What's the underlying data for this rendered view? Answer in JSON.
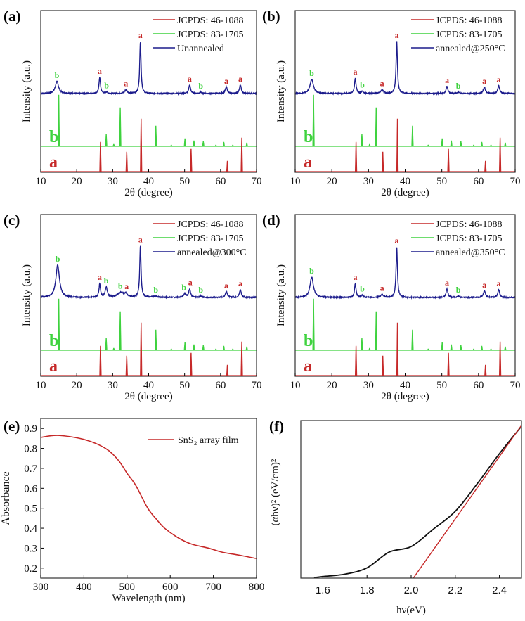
{
  "chart_data": [
    {
      "panel_label": "(a)",
      "type": "line",
      "xlabel": "2θ (degree)",
      "ylabel": "Intensity (a.u.)",
      "xlim": [
        10,
        70
      ],
      "xticks": [
        10,
        20,
        30,
        40,
        50,
        60,
        70
      ],
      "legend_position": "top-right",
      "grid": false,
      "series": [
        {
          "name": "JCPDS: 46-1088",
          "color": "#c62828",
          "kind": "stick",
          "peaks": [
            [
              26.6,
              42
            ],
            [
              33.9,
              28
            ],
            [
              37.9,
              75
            ],
            [
              51.8,
              32
            ],
            [
              61.9,
              15
            ],
            [
              65.9,
              48
            ]
          ]
        },
        {
          "name": "JCPDS: 83-1705",
          "color": "#3fd23f",
          "kind": "stick",
          "peaks": [
            [
              15.0,
              73
            ],
            [
              28.2,
              17
            ],
            [
              30.3,
              3
            ],
            [
              32.1,
              55
            ],
            [
              42.0,
              29
            ],
            [
              46.3,
              2
            ],
            [
              50.1,
              11
            ],
            [
              52.6,
              8
            ],
            [
              55.2,
              7
            ],
            [
              58.7,
              2
            ],
            [
              60.9,
              6
            ],
            [
              63.4,
              2
            ],
            [
              67.3,
              5
            ]
          ]
        },
        {
          "name": "Unannealed",
          "color": "#1c1c8c",
          "kind": "profile",
          "peaks": [
            [
              14.5,
              17,
              1.1
            ],
            [
              26.4,
              23,
              0.5
            ],
            [
              28.3,
              2,
              0.6
            ],
            [
              33.7,
              5,
              0.9
            ],
            [
              37.7,
              74,
              0.45
            ],
            [
              51.4,
              12,
              0.6
            ],
            [
              54.5,
              2,
              0.6
            ],
            [
              61.6,
              9,
              0.7
            ],
            [
              65.5,
              12,
              0.6
            ]
          ]
        }
      ],
      "series_labels": [
        "b",
        "a"
      ],
      "annotations": [
        [
          "b",
          14.5,
          1
        ],
        [
          "a",
          26.4,
          0
        ],
        [
          "b",
          28.3,
          1
        ],
        [
          "a",
          33.7,
          0
        ],
        [
          "a",
          37.7,
          0
        ],
        [
          "a",
          51.4,
          0
        ],
        [
          "b",
          54.5,
          1
        ],
        [
          "a",
          61.6,
          0
        ],
        [
          "a",
          65.5,
          0
        ]
      ]
    },
    {
      "panel_label": "(b)",
      "type": "line",
      "xlabel": "2θ (degree)",
      "ylabel": "Intensity (a.u.)",
      "xlim": [
        10,
        70
      ],
      "xticks": [
        10,
        20,
        30,
        40,
        50,
        60,
        70
      ],
      "legend_position": "top-right",
      "grid": false,
      "series": [
        {
          "name": "JCPDS: 46-1088",
          "color": "#c62828",
          "kind": "stick",
          "peaks": [
            [
              26.6,
              42
            ],
            [
              33.9,
              28
            ],
            [
              37.9,
              75
            ],
            [
              51.8,
              32
            ],
            [
              61.9,
              15
            ],
            [
              65.9,
              48
            ]
          ]
        },
        {
          "name": "JCPDS: 83-1705",
          "color": "#3fd23f",
          "kind": "stick",
          "peaks": [
            [
              15.0,
              73
            ],
            [
              28.2,
              17
            ],
            [
              30.3,
              3
            ],
            [
              32.1,
              55
            ],
            [
              42.0,
              29
            ],
            [
              46.3,
              2
            ],
            [
              50.1,
              11
            ],
            [
              52.6,
              8
            ],
            [
              55.2,
              7
            ],
            [
              58.7,
              2
            ],
            [
              60.9,
              6
            ],
            [
              63.4,
              2
            ],
            [
              67.3,
              5
            ]
          ]
        },
        {
          "name": "annealed@250°C",
          "color": "#1c1c8c",
          "kind": "profile",
          "peaks": [
            [
              14.5,
              20,
              1.1
            ],
            [
              26.4,
              22,
              0.5
            ],
            [
              28.3,
              3,
              0.6
            ],
            [
              33.7,
              5,
              0.9
            ],
            [
              37.7,
              74,
              0.45
            ],
            [
              51.4,
              10,
              0.6
            ],
            [
              54.5,
              2,
              0.6
            ],
            [
              61.6,
              9,
              0.7
            ],
            [
              65.5,
              11,
              0.6
            ]
          ]
        }
      ],
      "series_labels": [
        "b",
        "a"
      ],
      "annotations": [
        [
          "b",
          14.5,
          1
        ],
        [
          "a",
          26.4,
          0
        ],
        [
          "b",
          28.3,
          1
        ],
        [
          "a",
          33.7,
          0
        ],
        [
          "a",
          37.7,
          0
        ],
        [
          "a",
          51.4,
          0
        ],
        [
          "b",
          54.5,
          1
        ],
        [
          "a",
          61.6,
          0
        ],
        [
          "a",
          65.5,
          0
        ]
      ]
    },
    {
      "panel_label": "(c)",
      "type": "line",
      "xlabel": "2θ (degree)",
      "ylabel": "Intensity (a.u.)",
      "xlim": [
        10,
        70
      ],
      "xticks": [
        10,
        20,
        30,
        40,
        50,
        60,
        70
      ],
      "legend_position": "top-right",
      "grid": false,
      "series": [
        {
          "name": "JCPDS: 46-1088",
          "color": "#c62828",
          "kind": "stick",
          "peaks": [
            [
              26.6,
              42
            ],
            [
              33.9,
              28
            ],
            [
              37.9,
              75
            ],
            [
              51.8,
              32
            ],
            [
              61.9,
              15
            ],
            [
              65.9,
              48
            ]
          ]
        },
        {
          "name": "JCPDS: 83-1705",
          "color": "#3fd23f",
          "kind": "stick",
          "peaks": [
            [
              15.0,
              73
            ],
            [
              28.2,
              17
            ],
            [
              30.3,
              3
            ],
            [
              32.1,
              55
            ],
            [
              42.0,
              29
            ],
            [
              46.3,
              2
            ],
            [
              50.1,
              11
            ],
            [
              52.6,
              8
            ],
            [
              55.2,
              7
            ],
            [
              58.7,
              2
            ],
            [
              60.9,
              6
            ],
            [
              63.4,
              2
            ],
            [
              67.3,
              5
            ]
          ]
        },
        {
          "name": "annealed@300°C",
          "color": "#1c1c8c",
          "kind": "profile",
          "peaks": [
            [
              14.7,
              46,
              1.2
            ],
            [
              26.4,
              19,
              0.5
            ],
            [
              28.2,
              14,
              0.7
            ],
            [
              32.3,
              7,
              2.2
            ],
            [
              33.7,
              4,
              0.8
            ],
            [
              37.7,
              73,
              0.45
            ],
            [
              42.0,
              1.5,
              1.5
            ],
            [
              50.0,
              5,
              0.8
            ],
            [
              51.4,
              12,
              0.6
            ],
            [
              54.5,
              2,
              0.6
            ],
            [
              61.6,
              8,
              0.7
            ],
            [
              65.5,
              11,
              0.6
            ]
          ]
        }
      ],
      "series_labels": [
        "b",
        "a"
      ],
      "annotations": [
        [
          "b",
          14.7,
          1
        ],
        [
          "a",
          26.4,
          0
        ],
        [
          "b",
          28.2,
          1
        ],
        [
          "b",
          32.3,
          1
        ],
        [
          "a",
          33.7,
          0
        ],
        [
          "a",
          37.7,
          0
        ],
        [
          "b",
          42.0,
          1
        ],
        [
          "b",
          50.0,
          1
        ],
        [
          "a",
          51.4,
          0
        ],
        [
          "b",
          54.5,
          1
        ],
        [
          "a",
          61.6,
          0
        ],
        [
          "a",
          65.5,
          0
        ]
      ]
    },
    {
      "panel_label": "(d)",
      "type": "line",
      "xlabel": "2θ (degree)",
      "ylabel": "Intensity (a.u.)",
      "xlim": [
        10,
        70
      ],
      "xticks": [
        10,
        20,
        30,
        40,
        50,
        60,
        70
      ],
      "legend_position": "top-right",
      "grid": false,
      "series": [
        {
          "name": "JCPDS: 46-1088",
          "color": "#c62828",
          "kind": "stick",
          "peaks": [
            [
              26.6,
              42
            ],
            [
              33.9,
              28
            ],
            [
              37.9,
              75
            ],
            [
              51.8,
              32
            ],
            [
              61.9,
              15
            ],
            [
              65.9,
              48
            ]
          ]
        },
        {
          "name": "JCPDS: 83-1705",
          "color": "#3fd23f",
          "kind": "stick",
          "peaks": [
            [
              15.0,
              73
            ],
            [
              28.2,
              17
            ],
            [
              30.3,
              3
            ],
            [
              32.1,
              55
            ],
            [
              42.0,
              29
            ],
            [
              46.3,
              2
            ],
            [
              50.1,
              11
            ],
            [
              52.6,
              8
            ],
            [
              55.2,
              7
            ],
            [
              58.7,
              2
            ],
            [
              60.9,
              6
            ],
            [
              63.4,
              2
            ],
            [
              67.3,
              5
            ]
          ]
        },
        {
          "name": "annealed@350°C",
          "color": "#1c1c8c",
          "kind": "profile",
          "peaks": [
            [
              14.5,
              29,
              1.1
            ],
            [
              26.4,
              20,
              0.5
            ],
            [
              28.3,
              3,
              0.6
            ],
            [
              33.7,
              4,
              0.9
            ],
            [
              37.7,
              72,
              0.45
            ],
            [
              51.4,
              12,
              0.6
            ],
            [
              54.5,
              2,
              0.6
            ],
            [
              61.6,
              9,
              0.7
            ],
            [
              65.5,
              11,
              0.6
            ]
          ]
        }
      ],
      "series_labels": [
        "b",
        "a"
      ],
      "annotations": [
        [
          "b",
          14.5,
          1
        ],
        [
          "a",
          26.4,
          0
        ],
        [
          "b",
          28.3,
          1
        ],
        [
          "a",
          33.7,
          0
        ],
        [
          "a",
          37.7,
          0
        ],
        [
          "a",
          51.4,
          0
        ],
        [
          "b",
          54.5,
          1
        ],
        [
          "a",
          61.6,
          0
        ],
        [
          "a",
          65.5,
          0
        ]
      ]
    },
    {
      "panel_label": "(e)",
      "type": "line",
      "xlabel": "Wavelength (nm)",
      "ylabel": "Absorbance",
      "xlim": [
        300,
        800
      ],
      "ylim": [
        0.15,
        0.95
      ],
      "xticks": [
        300,
        400,
        500,
        600,
        700,
        800
      ],
      "yticks": [
        0.2,
        0.3,
        0.4,
        0.5,
        0.6,
        0.7,
        0.8,
        0.9
      ],
      "legend_position": "top-right",
      "grid": false,
      "series": [
        {
          "name": "SnS₂ array film",
          "color": "#c62828",
          "x": [
            300,
            340,
            400,
            450,
            480,
            500,
            520,
            548,
            570,
            587,
            620,
            650,
            689,
            720,
            760,
            800
          ],
          "y": [
            0.855,
            0.865,
            0.845,
            0.8,
            0.74,
            0.675,
            0.615,
            0.5,
            0.44,
            0.4,
            0.35,
            0.32,
            0.3,
            0.28,
            0.265,
            0.248
          ]
        }
      ]
    },
    {
      "panel_label": "(f)",
      "type": "line",
      "xlabel": "hν(eV)",
      "ylabel": "(αhν)² (eV/cm)²",
      "xlim": [
        1.5,
        2.5
      ],
      "ylim": [
        0,
        100
      ],
      "xticks": [
        "1.6",
        "1.8",
        "2.0",
        "2.2",
        "2.4"
      ],
      "grid": false,
      "series": [
        {
          "color": "#111111",
          "x": [
            1.56,
            1.6,
            1.7,
            1.8,
            1.9,
            2.0,
            2.1,
            2.2,
            2.3,
            2.4,
            2.5
          ],
          "y": [
            0.3,
            1,
            2.5,
            6.5,
            16.5,
            20,
            31,
            42.4,
            60,
            79,
            96.4
          ]
        },
        {
          "color": "#c62828",
          "kind": "linear-fit",
          "x": [
            2.01,
            2.5
          ],
          "y": [
            0,
            97
          ]
        }
      ]
    }
  ]
}
